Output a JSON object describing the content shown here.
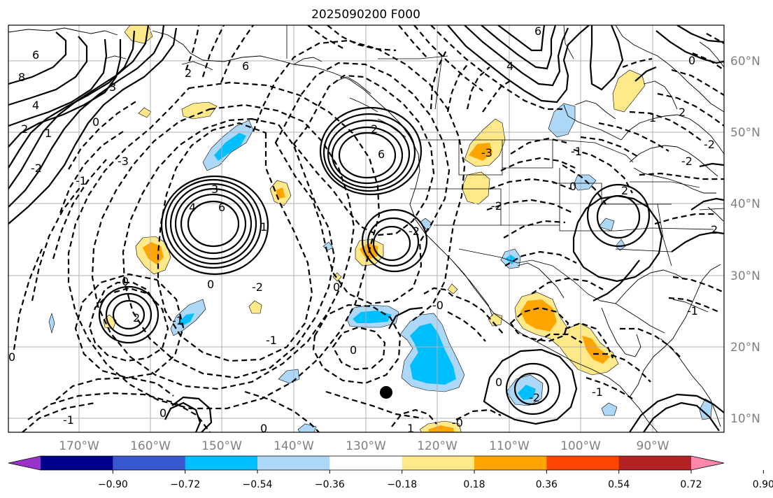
{
  "title": "2025090200 F000",
  "map": {
    "lon_labels": [
      "170°W",
      "160°W",
      "150°W",
      "140°W",
      "130°W",
      "120°W",
      "110°W",
      "100°W",
      "90°W"
    ],
    "lat_labels": [
      "60°N",
      "50°N",
      "40°N",
      "30°N",
      "20°N",
      "10°N"
    ],
    "contour_labels": [
      "6",
      "8",
      "3",
      "4",
      "2",
      "1",
      "0",
      "-3",
      "-2",
      "-1",
      "6",
      "3",
      "6",
      "4",
      "6",
      "2",
      "1",
      "0",
      "0",
      "2",
      "-1",
      "-2",
      "0",
      "-0",
      "0",
      "-2",
      "6",
      "4",
      "-3",
      "-2",
      "-1",
      "2",
      "0",
      "-2",
      "2",
      "2",
      "-2",
      "-1",
      "-1",
      "0",
      "-2",
      "-0",
      "0",
      "1",
      "0",
      "-1",
      "-1",
      "0",
      "1",
      "2",
      "0"
    ],
    "marker": "filled circle"
  },
  "colorbar": {
    "ticks": [
      "−0.90",
      "−0.72",
      "−0.54",
      "−0.36",
      "−0.18",
      "0.18",
      "0.36",
      "0.54",
      "0.72",
      "0.90"
    ],
    "colors": {
      "under": "#9932cc",
      "bins": [
        "#00008b",
        "#3858cf",
        "#00bfff",
        "#add8f7",
        "#ffffff",
        "#ffe989",
        "#ffa500",
        "#ff4500",
        "#b22222"
      ],
      "over": "#ff88aa"
    }
  }
}
